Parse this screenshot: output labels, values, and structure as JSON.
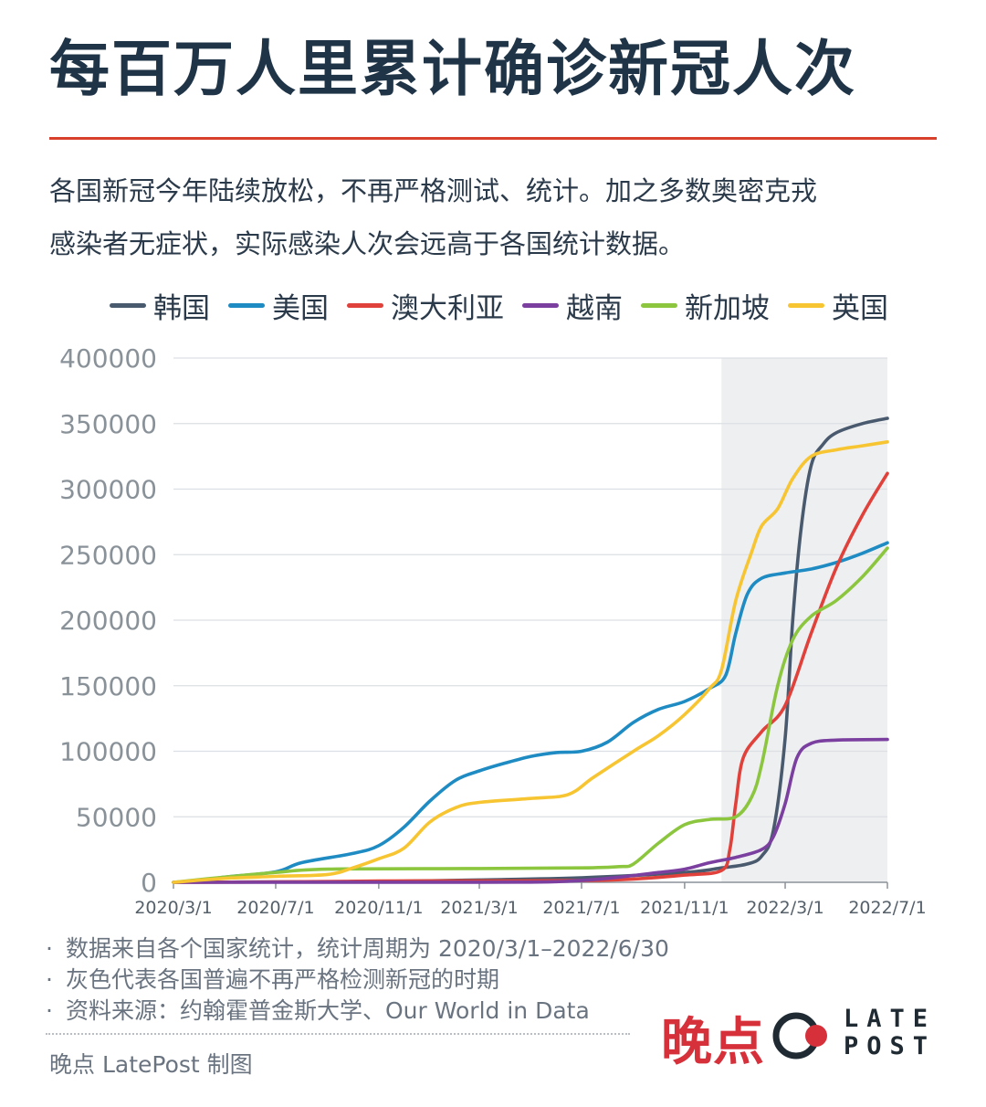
{
  "title": "每百万人里累计确诊新冠人次",
  "intro": {
    "line1": "各国新冠今年陆续放松，不再严格测试、统计。加之多数奥密克戎",
    "line2": "感染者无症状，实际感染人次会远高于各国统计数据。"
  },
  "colors": {
    "accent_rule": "#d9402b",
    "shade": "#eeeff1",
    "grid": "#dcdfe3"
  },
  "chart_data": {
    "type": "line",
    "title": "",
    "xlabel": "",
    "ylabel": "",
    "ylim": [
      0,
      400000
    ],
    "yticks": [
      "400000",
      "350000",
      "300000",
      "250000",
      "200000",
      "150000",
      "100000",
      "50000",
      "0"
    ],
    "yticks_values": [
      400000,
      350000,
      300000,
      250000,
      200000,
      150000,
      100000,
      50000,
      0
    ],
    "xticks": [
      "2020/3/1",
      "2020/7/1",
      "2020/11/1",
      "2021/3/1",
      "2021/7/1",
      "2021/11/1",
      "2022/3/1",
      "2022/7/1"
    ],
    "xlim": [
      "2020/3/1",
      "2022/7/1"
    ],
    "shaded_region": [
      "2021/12/15",
      "2022/7/1"
    ],
    "grid": true,
    "legend_position": "top",
    "series": [
      {
        "name": "韩国",
        "color": "#4a5a6e",
        "points": [
          [
            "2020/3/1",
            0
          ],
          [
            "2020/7/1",
            300
          ],
          [
            "2020/11/1",
            600
          ],
          [
            "2021/3/1",
            1800
          ],
          [
            "2021/7/1",
            3500
          ],
          [
            "2021/11/1",
            7500
          ],
          [
            "2021/12/15",
            11000
          ],
          [
            "2022/1/15",
            14000
          ],
          [
            "2022/2/1",
            20000
          ],
          [
            "2022/2/15",
            40000
          ],
          [
            "2022/3/1",
            110000
          ],
          [
            "2022/3/10",
            200000
          ],
          [
            "2022/3/20",
            270000
          ],
          [
            "2022/4/1",
            318000
          ],
          [
            "2022/4/15",
            334000
          ],
          [
            "2022/5/1",
            343000
          ],
          [
            "2022/6/1",
            350000
          ],
          [
            "2022/7/1",
            354000
          ]
        ]
      },
      {
        "name": "美国",
        "color": "#1e8bc3",
        "points": [
          [
            "2020/3/1",
            0
          ],
          [
            "2020/4/1",
            1000
          ],
          [
            "2020/5/1",
            4000
          ],
          [
            "2020/7/1",
            8000
          ],
          [
            "2020/8/1",
            15000
          ],
          [
            "2020/10/1",
            22000
          ],
          [
            "2020/11/1",
            28000
          ],
          [
            "2020/12/1",
            42000
          ],
          [
            "2021/1/1",
            62000
          ],
          [
            "2021/2/1",
            78000
          ],
          [
            "2021/3/1",
            85000
          ],
          [
            "2021/4/1",
            91000
          ],
          [
            "2021/5/1",
            96000
          ],
          [
            "2021/6/1",
            99000
          ],
          [
            "2021/7/1",
            100000
          ],
          [
            "2021/8/1",
            107000
          ],
          [
            "2021/9/1",
            122000
          ],
          [
            "2021/10/1",
            132000
          ],
          [
            "2021/11/1",
            138000
          ],
          [
            "2021/12/1",
            148000
          ],
          [
            "2021/12/20",
            158000
          ],
          [
            "2022/1/1",
            190000
          ],
          [
            "2022/1/15",
            220000
          ],
          [
            "2022/2/1",
            232000
          ],
          [
            "2022/3/1",
            236000
          ],
          [
            "2022/4/1",
            239000
          ],
          [
            "2022/5/1",
            244000
          ],
          [
            "2022/6/1",
            251000
          ],
          [
            "2022/7/1",
            259000
          ]
        ]
      },
      {
        "name": "澳大利亚",
        "color": "#e0413b",
        "points": [
          [
            "2020/3/1",
            0
          ],
          [
            "2020/7/1",
            300
          ],
          [
            "2020/11/1",
            1000
          ],
          [
            "2021/3/1",
            1100
          ],
          [
            "2021/7/1",
            1300
          ],
          [
            "2021/9/1",
            2500
          ],
          [
            "2021/11/1",
            5500
          ],
          [
            "2021/12/15",
            9000
          ],
          [
            "2021/12/25",
            25000
          ],
          [
            "2022/1/1",
            60000
          ],
          [
            "2022/1/10",
            95000
          ],
          [
            "2022/2/1",
            115000
          ],
          [
            "2022/3/1",
            135000
          ],
          [
            "2022/4/1",
            190000
          ],
          [
            "2022/5/1",
            240000
          ],
          [
            "2022/6/1",
            280000
          ],
          [
            "2022/7/1",
            312000
          ]
        ]
      },
      {
        "name": "越南",
        "color": "#7b3fa0",
        "points": [
          [
            "2020/3/1",
            0
          ],
          [
            "2021/3/1",
            100
          ],
          [
            "2021/6/1",
            500
          ],
          [
            "2021/8/1",
            3000
          ],
          [
            "2021/10/1",
            7500
          ],
          [
            "2021/11/1",
            10000
          ],
          [
            "2021/12/1",
            15000
          ],
          [
            "2022/1/1",
            19000
          ],
          [
            "2022/2/1",
            25000
          ],
          [
            "2022/2/15",
            35000
          ],
          [
            "2022/3/1",
            60000
          ],
          [
            "2022/3/15",
            95000
          ],
          [
            "2022/4/1",
            106000
          ],
          [
            "2022/5/1",
            108500
          ],
          [
            "2022/7/1",
            109000
          ]
        ]
      },
      {
        "name": "新加坡",
        "color": "#8cc63f",
        "points": [
          [
            "2020/3/1",
            0
          ],
          [
            "2020/5/1",
            4000
          ],
          [
            "2020/7/1",
            7500
          ],
          [
            "2020/9/1",
            10000
          ],
          [
            "2021/3/1",
            10500
          ],
          [
            "2021/7/1",
            11000
          ],
          [
            "2021/8/15",
            12000
          ],
          [
            "2021/9/1",
            14000
          ],
          [
            "2021/10/1",
            30000
          ],
          [
            "2021/11/1",
            44000
          ],
          [
            "2021/12/1",
            48000
          ],
          [
            "2022/1/1",
            50000
          ],
          [
            "2022/1/20",
            65000
          ],
          [
            "2022/2/1",
            90000
          ],
          [
            "2022/2/20",
            150000
          ],
          [
            "2022/3/10",
            185000
          ],
          [
            "2022/4/1",
            203000
          ],
          [
            "2022/5/1",
            215000
          ],
          [
            "2022/6/1",
            233000
          ],
          [
            "2022/7/1",
            255000
          ]
        ]
      },
      {
        "name": "英国",
        "color": "#f7c531",
        "points": [
          [
            "2020/3/1",
            0
          ],
          [
            "2020/5/1",
            3000
          ],
          [
            "2020/7/1",
            4500
          ],
          [
            "2020/9/1",
            6000
          ],
          [
            "2020/10/1",
            11000
          ],
          [
            "2020/11/1",
            18000
          ],
          [
            "2020/12/1",
            26000
          ],
          [
            "2021/1/1",
            46000
          ],
          [
            "2021/2/1",
            57000
          ],
          [
            "2021/3/1",
            61000
          ],
          [
            "2021/5/1",
            64000
          ],
          [
            "2021/6/15",
            67000
          ],
          [
            "2021/7/15",
            80000
          ],
          [
            "2021/9/1",
            100000
          ],
          [
            "2021/10/1",
            112000
          ],
          [
            "2021/11/1",
            128000
          ],
          [
            "2021/12/1",
            148000
          ],
          [
            "2021/12/15",
            162000
          ],
          [
            "2022/1/1",
            215000
          ],
          [
            "2022/1/20",
            252000
          ],
          [
            "2022/2/1",
            272000
          ],
          [
            "2022/2/20",
            285000
          ],
          [
            "2022/3/10",
            308000
          ],
          [
            "2022/4/1",
            325000
          ],
          [
            "2022/5/1",
            330000
          ],
          [
            "2022/6/1",
            333000
          ],
          [
            "2022/7/1",
            336000
          ]
        ]
      }
    ]
  },
  "notes": [
    {
      "bullet": "·",
      "text": "数据来自各个国家统计，统计周期为 2020/3/1–2022/6/30"
    },
    {
      "bullet": "·",
      "text": "灰色代表各国普遍不再严格检测新冠的时期"
    },
    {
      "bullet": "·",
      "text": "资料来源：约翰霍普金斯大学、Our World in Data"
    }
  ],
  "credit": "晚点 LatePost 制图",
  "brand": {
    "cn": "晚点",
    "en_line1": "LATE",
    "en_line2": "POST",
    "logo_icon": "latepost-circle-logo-icon",
    "color": "#d6303b"
  }
}
